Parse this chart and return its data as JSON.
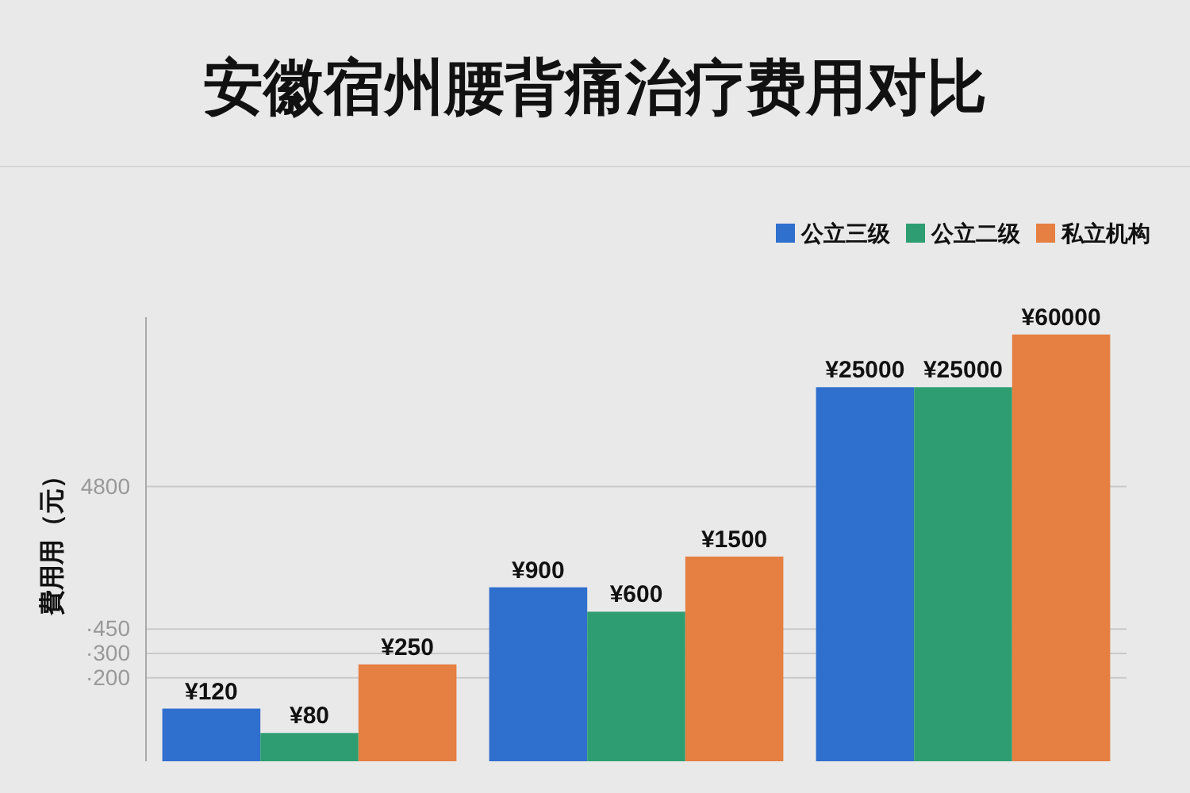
{
  "chart_data": {
    "type": "bar",
    "title": "安徽宿州腰背痛治疗费用对比",
    "ylabel": "費用用（元）",
    "categories": [
      null,
      null,
      null
    ],
    "series": [
      {
        "name": "公立三级",
        "color": "#2f6fce",
        "values": [
          120,
          900,
          25000
        ],
        "value_labels": [
          "¥120",
          "¥900",
          "¥25000"
        ]
      },
      {
        "name": "公立二级",
        "color": "#2e9e72",
        "values": [
          80,
          600,
          25000
        ],
        "value_labels": [
          "¥80",
          "¥600",
          "¥25000"
        ]
      },
      {
        "name": "私立机构",
        "color": "#e57f42",
        "values": [
          250,
          1500,
          60000
        ],
        "value_labels": [
          "¥250",
          "¥1500",
          "¥60000"
        ]
      }
    ],
    "ylim": [
      50,
      80000
    ],
    "log": "y",
    "yticks": [
      {
        "value": 200,
        "label": "·200"
      },
      {
        "value": 300,
        "label": "·300"
      },
      {
        "value": 450,
        "label": "·450"
      },
      4800
    ],
    "grid": "y",
    "legend": "top right"
  }
}
